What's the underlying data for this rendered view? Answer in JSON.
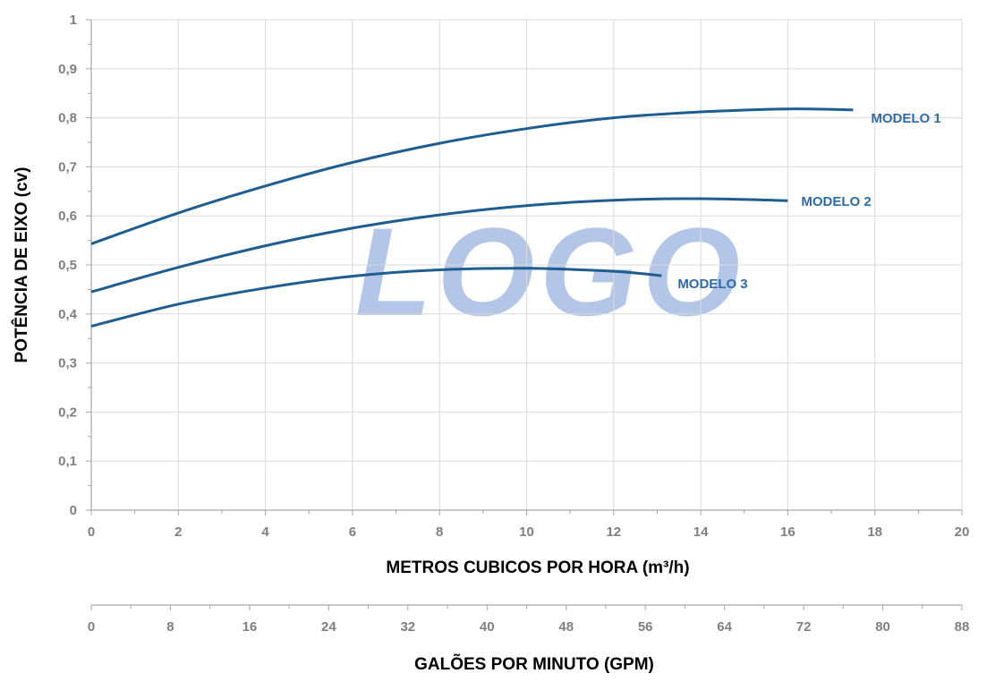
{
  "chart_data": {
    "type": "line",
    "ylabel": "POTÊNCIA DE EIXO (cv)",
    "xlabel": "METROS CUBICOS POR HORA (m³/h)",
    "x2label": "GALÕES POR MINUTO (GPM)",
    "xlim": [
      0,
      20
    ],
    "ylim": [
      0,
      1
    ],
    "x2lim": [
      0,
      88
    ],
    "x_ticks": [
      "0",
      "2",
      "4",
      "6",
      "8",
      "10",
      "12",
      "14",
      "16",
      "18",
      "20"
    ],
    "y_ticks": [
      "0",
      "0,1",
      "0,2",
      "0,3",
      "0,4",
      "0,5",
      "0,6",
      "0,7",
      "0,8",
      "0,9",
      "1"
    ],
    "x2_ticks": [
      "0",
      "8",
      "16",
      "24",
      "32",
      "40",
      "48",
      "56",
      "64",
      "72",
      "80",
      "88"
    ],
    "grid": true,
    "line_color": "#1f5c8f",
    "label_color": "#2e6aa3",
    "watermark": "LOGO",
    "series": [
      {
        "name": "MODELO 1",
        "x": [
          0,
          2,
          4,
          6,
          8,
          10,
          12,
          14,
          16,
          17.5
        ],
        "y": [
          0.543,
          0.606,
          0.661,
          0.709,
          0.748,
          0.778,
          0.8,
          0.812,
          0.818,
          0.816
        ]
      },
      {
        "name": "MODELO 2",
        "x": [
          0,
          2,
          4,
          6,
          8,
          10,
          12,
          14,
          16
        ],
        "y": [
          0.445,
          0.495,
          0.539,
          0.575,
          0.602,
          0.621,
          0.632,
          0.635,
          0.631
        ]
      },
      {
        "name": "MODELO 3",
        "x": [
          0,
          2,
          4,
          6,
          8,
          10,
          12,
          13.1
        ],
        "y": [
          0.375,
          0.42,
          0.453,
          0.477,
          0.49,
          0.493,
          0.487,
          0.478
        ]
      }
    ]
  }
}
